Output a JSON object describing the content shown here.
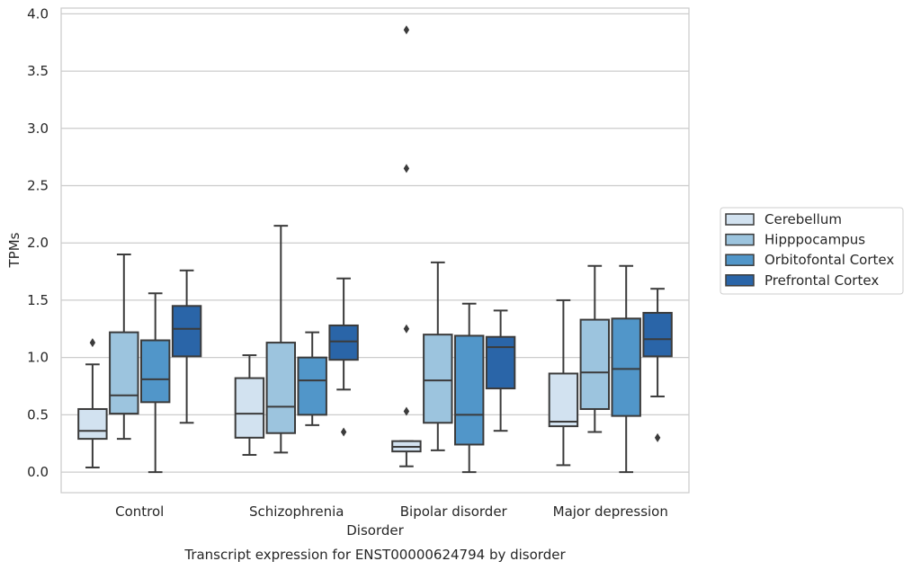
{
  "chart_data": {
    "type": "box",
    "title": "",
    "caption": "Transcript expression for ENST00000624794 by disorder",
    "xlabel": "Disorder",
    "ylabel": "TPMs",
    "ylim": [
      -0.18,
      4.05
    ],
    "yticks": [
      0.0,
      0.5,
      1.0,
      1.5,
      2.0,
      2.5,
      3.0,
      3.5,
      4.0
    ],
    "ytick_labels": [
      "0.0",
      "0.5",
      "1.0",
      "1.5",
      "2.0",
      "2.5",
      "3.0",
      "3.5",
      "4.0"
    ],
    "grid": "horizontal",
    "legend_position": "right",
    "categories": [
      "Control",
      "Schizophrenia",
      "Bipolar disorder",
      "Major depression"
    ],
    "series": [
      {
        "name": "Cerebellum",
        "color": "#d2e2f0",
        "boxes": [
          {
            "whisker_low": 0.04,
            "q1": 0.29,
            "median": 0.36,
            "q3": 0.55,
            "whisker_high": 0.94,
            "outliers": [
              1.13
            ]
          },
          {
            "whisker_low": 0.15,
            "q1": 0.3,
            "median": 0.51,
            "q3": 0.82,
            "whisker_high": 1.02,
            "outliers": []
          },
          {
            "whisker_low": 0.05,
            "q1": 0.18,
            "median": 0.22,
            "q3": 0.27,
            "whisker_high": 0.27,
            "outliers": [
              0.53,
              1.25,
              2.65,
              3.86
            ]
          },
          {
            "whisker_low": 0.06,
            "q1": 0.4,
            "median": 0.44,
            "q3": 0.86,
            "whisker_high": 1.5,
            "outliers": []
          }
        ]
      },
      {
        "name": "Hipppocampus",
        "color": "#9cc4de",
        "boxes": [
          {
            "whisker_low": 0.29,
            "q1": 0.51,
            "median": 0.67,
            "q3": 1.22,
            "whisker_high": 1.9,
            "outliers": []
          },
          {
            "whisker_low": 0.17,
            "q1": 0.34,
            "median": 0.57,
            "q3": 1.13,
            "whisker_high": 2.15,
            "outliers": []
          },
          {
            "whisker_low": 0.19,
            "q1": 0.43,
            "median": 0.8,
            "q3": 1.2,
            "whisker_high": 1.83,
            "outliers": []
          },
          {
            "whisker_low": 0.35,
            "q1": 0.55,
            "median": 0.87,
            "q3": 1.33,
            "whisker_high": 1.8,
            "outliers": []
          }
        ]
      },
      {
        "name": "Orbitofontal Cortex",
        "color": "#5196c9",
        "boxes": [
          {
            "whisker_low": 0.0,
            "q1": 0.61,
            "median": 0.81,
            "q3": 1.15,
            "whisker_high": 1.56,
            "outliers": []
          },
          {
            "whisker_low": 0.41,
            "q1": 0.5,
            "median": 0.8,
            "q3": 1.0,
            "whisker_high": 1.22,
            "outliers": []
          },
          {
            "whisker_low": 0.0,
            "q1": 0.24,
            "median": 0.5,
            "q3": 1.19,
            "whisker_high": 1.47,
            "outliers": []
          },
          {
            "whisker_low": 0.0,
            "q1": 0.49,
            "median": 0.9,
            "q3": 1.34,
            "whisker_high": 1.8,
            "outliers": []
          }
        ]
      },
      {
        "name": "Prefrontal Cortex",
        "color": "#2a65a8",
        "boxes": [
          {
            "whisker_low": 0.43,
            "q1": 1.01,
            "median": 1.25,
            "q3": 1.45,
            "whisker_high": 1.76,
            "outliers": []
          },
          {
            "whisker_low": 0.72,
            "q1": 0.98,
            "median": 1.14,
            "q3": 1.28,
            "whisker_high": 1.69,
            "outliers": [
              0.35
            ]
          },
          {
            "whisker_low": 0.36,
            "q1": 0.73,
            "median": 1.09,
            "q3": 1.18,
            "whisker_high": 1.41,
            "outliers": []
          },
          {
            "whisker_low": 0.66,
            "q1": 1.01,
            "median": 1.16,
            "q3": 1.39,
            "whisker_high": 1.6,
            "outliers": [
              0.3
            ]
          }
        ]
      }
    ]
  }
}
